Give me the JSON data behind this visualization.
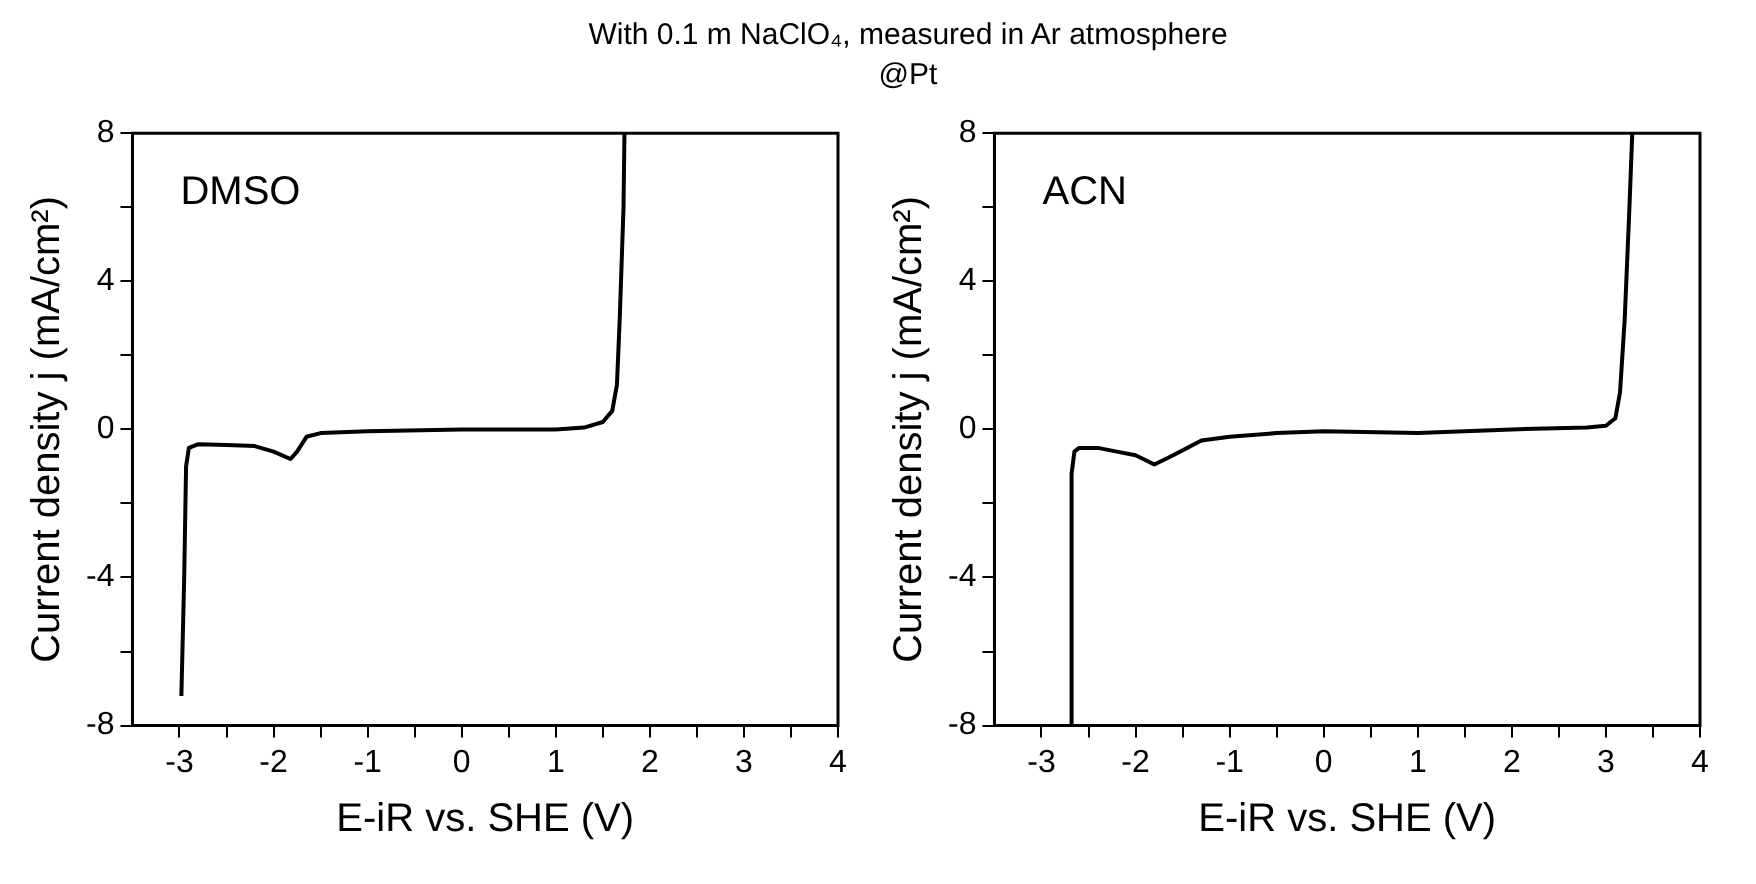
{
  "chart_data": [
    {
      "type": "line",
      "title": "With 0.1 m NaClO₄, measured in Ar atmosphere",
      "xlabel": "E-iR vs. SHE (V)",
      "ylabel": "Current density j (mA/cm²)",
      "annotations": [
        "DMSO"
      ],
      "legend": false,
      "grid": false,
      "marker": "none",
      "line_style": "solid",
      "series": [
        {
          "color": "#000000",
          "x": [
            -2.98,
            -2.95,
            -2.93,
            -2.9,
            -2.8,
            -2.5,
            -2.2,
            -2.0,
            -1.82,
            -1.75,
            -1.65,
            -1.5,
            -1.0,
            0.0,
            0.5,
            1.0,
            1.3,
            1.5,
            1.6,
            1.65,
            1.68,
            1.72,
            1.73
          ],
          "values": [
            -7.2,
            -4,
            -1,
            -0.5,
            -0.4,
            -0.42,
            -0.45,
            -0.6,
            -0.8,
            -0.6,
            -0.2,
            -0.1,
            -0.05,
            0.0,
            0.0,
            0.0,
            0.05,
            0.2,
            0.5,
            1.2,
            3,
            6,
            8
          ]
        }
      ],
      "xlim": [
        -3.5,
        4
      ],
      "xticks": [
        -3,
        {
          "value": -2.5,
          "label": null
        },
        -2,
        {
          "value": -1.5,
          "label": null
        },
        -1,
        {
          "value": -0.5,
          "label": null
        },
        0,
        {
          "value": 0.5,
          "label": null
        },
        1,
        {
          "value": 1.5,
          "label": null
        },
        2,
        {
          "value": 2.5,
          "label": null
        },
        3,
        {
          "value": 3.5,
          "label": null
        },
        4
      ],
      "ylim": [
        -8,
        8
      ],
      "yticks": [
        -8,
        {
          "value": -6,
          "label": null
        },
        -4,
        {
          "value": -2,
          "label": null
        },
        0,
        {
          "value": 2,
          "label": null
        },
        4,
        {
          "value": 6,
          "label": null
        },
        8
      ]
    },
    {
      "type": "line",
      "subtitle": "@Pt",
      "xlabel": "E-iR vs. SHE (V)",
      "ylabel": "Current density j (mA/cm²)",
      "annotations": [
        "ACN"
      ],
      "legend": false,
      "grid": false,
      "marker": "none",
      "line_style": "solid",
      "series": [
        {
          "color": "#000000",
          "x": [
            -2.68,
            -2.68,
            -2.65,
            -2.6,
            -2.4,
            -2.2,
            -2.0,
            -1.8,
            -1.6,
            -1.3,
            -1.0,
            -0.5,
            0.0,
            1.0,
            2.0,
            2.8,
            3.0,
            3.1,
            3.15,
            3.2,
            3.25,
            3.28
          ],
          "values": [
            -8,
            -1.2,
            -0.6,
            -0.5,
            -0.5,
            -0.6,
            -0.7,
            -0.95,
            -0.7,
            -0.3,
            -0.2,
            -0.1,
            -0.05,
            -0.1,
            0.0,
            0.05,
            0.1,
            0.3,
            1.0,
            3,
            6,
            8
          ]
        }
      ],
      "xlim": [
        -3.5,
        4
      ],
      "xticks": [
        -3,
        {
          "value": -2.5,
          "label": null
        },
        -2,
        {
          "value": -1.5,
          "label": null
        },
        -1,
        {
          "value": -0.5,
          "label": null
        },
        0,
        {
          "value": 0.5,
          "label": null
        },
        1,
        {
          "value": 1.5,
          "label": null
        },
        2,
        {
          "value": 2.5,
          "label": null
        },
        3,
        {
          "value": 3.5,
          "label": null
        },
        4
      ],
      "ylim": [
        -8,
        8
      ],
      "yticks": [
        -8,
        {
          "value": -6,
          "label": null
        },
        -4,
        {
          "value": -2,
          "label": null
        },
        0,
        {
          "value": 2,
          "label": null
        },
        4,
        {
          "value": 6,
          "label": null
        },
        8
      ]
    }
  ]
}
